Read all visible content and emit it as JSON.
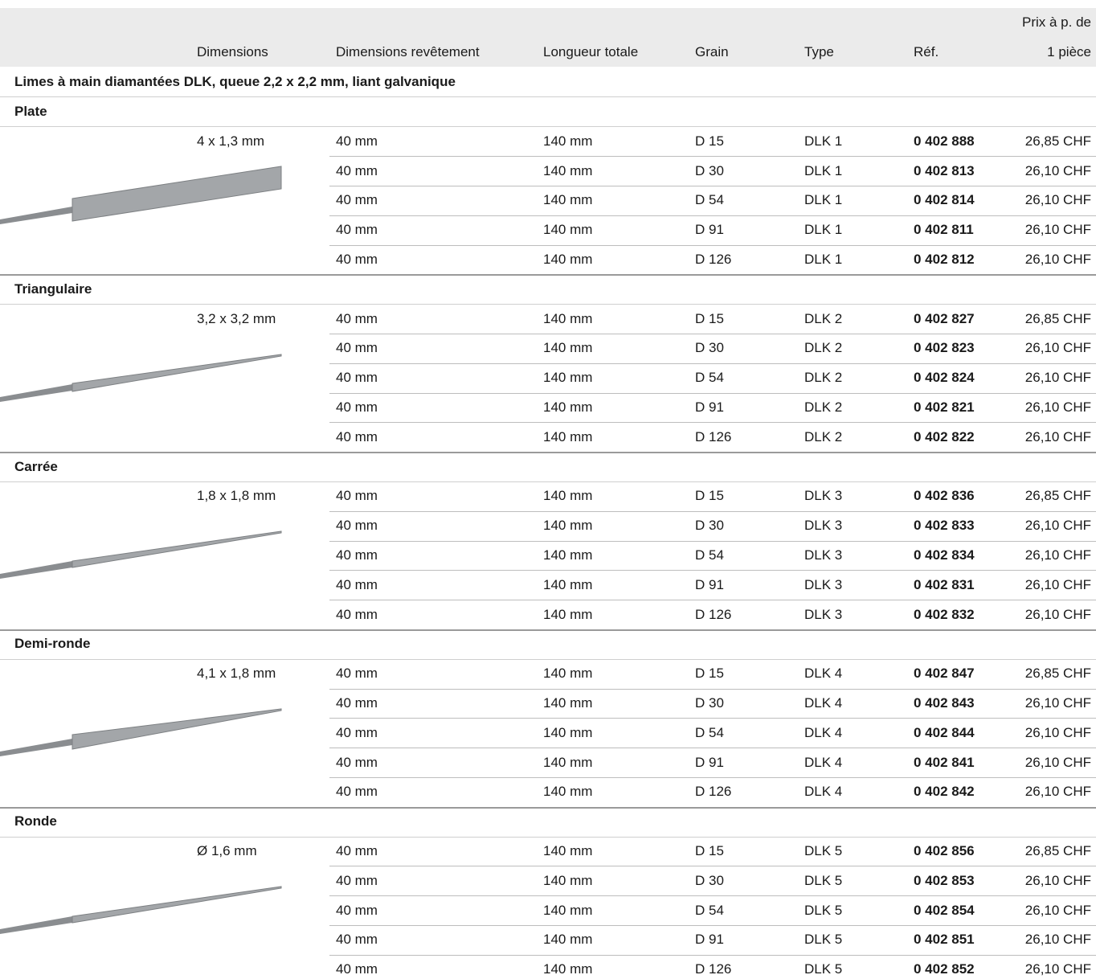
{
  "header": {
    "columns": [
      "Dimensions",
      "Dimensions revêtement",
      "Longueur totale",
      "Grain",
      "Type",
      "Réf."
    ],
    "price": [
      "Prix à p. de",
      "1 pièce"
    ]
  },
  "title": "Limes à main diamantées DLK, queue 2,2 x 2,2 mm, liant galvanique",
  "groups": [
    {
      "name": "Plate",
      "dimensions": "4 x 1,3 mm",
      "rows": [
        [
          "40 mm",
          "140 mm",
          "D 15",
          "DLK 1",
          "0 402 888",
          "26,85 CHF"
        ],
        [
          "40 mm",
          "140 mm",
          "D 30",
          "DLK 1",
          "0 402 813",
          "26,10 CHF"
        ],
        [
          "40 mm",
          "140 mm",
          "D 54",
          "DLK 1",
          "0 402 814",
          "26,10 CHF"
        ],
        [
          "40 mm",
          "140 mm",
          "D 91",
          "DLK 1",
          "0 402 811",
          "26,10 CHF"
        ],
        [
          "40 mm",
          "140 mm",
          "D 126",
          "DLK 1",
          "0 402 812",
          "26,10 CHF"
        ]
      ]
    },
    {
      "name": "Triangulaire",
      "dimensions": "3,2 x 3,2 mm",
      "rows": [
        [
          "40 mm",
          "140 mm",
          "D 15",
          "DLK 2",
          "0 402 827",
          "26,85 CHF"
        ],
        [
          "40 mm",
          "140 mm",
          "D 30",
          "DLK 2",
          "0 402 823",
          "26,10 CHF"
        ],
        [
          "40 mm",
          "140 mm",
          "D 54",
          "DLK 2",
          "0 402 824",
          "26,10 CHF"
        ],
        [
          "40 mm",
          "140 mm",
          "D 91",
          "DLK 2",
          "0 402 821",
          "26,10 CHF"
        ],
        [
          "40 mm",
          "140 mm",
          "D 126",
          "DLK 2",
          "0 402 822",
          "26,10 CHF"
        ]
      ]
    },
    {
      "name": "Carrée",
      "dimensions": "1,8 x 1,8 mm",
      "rows": [
        [
          "40 mm",
          "140 mm",
          "D 15",
          "DLK 3",
          "0 402 836",
          "26,85 CHF"
        ],
        [
          "40 mm",
          "140 mm",
          "D 30",
          "DLK 3",
          "0 402 833",
          "26,10 CHF"
        ],
        [
          "40 mm",
          "140 mm",
          "D 54",
          "DLK 3",
          "0 402 834",
          "26,10 CHF"
        ],
        [
          "40 mm",
          "140 mm",
          "D 91",
          "DLK 3",
          "0 402 831",
          "26,10 CHF"
        ],
        [
          "40 mm",
          "140 mm",
          "D 126",
          "DLK 3",
          "0 402 832",
          "26,10 CHF"
        ]
      ]
    },
    {
      "name": "Demi-ronde",
      "dimensions": "4,1 x 1,8 mm",
      "rows": [
        [
          "40 mm",
          "140 mm",
          "D 15",
          "DLK 4",
          "0 402 847",
          "26,85 CHF"
        ],
        [
          "40 mm",
          "140 mm",
          "D 30",
          "DLK 4",
          "0 402 843",
          "26,10 CHF"
        ],
        [
          "40 mm",
          "140 mm",
          "D 54",
          "DLK 4",
          "0 402 844",
          "26,10 CHF"
        ],
        [
          "40 mm",
          "140 mm",
          "D 91",
          "DLK 4",
          "0 402 841",
          "26,10 CHF"
        ],
        [
          "40 mm",
          "140 mm",
          "D 126",
          "DLK 4",
          "0 402 842",
          "26,10 CHF"
        ]
      ]
    },
    {
      "name": "Ronde",
      "dimensions": "Ø 1,6 mm",
      "rows": [
        [
          "40 mm",
          "140 mm",
          "D 15",
          "DLK 5",
          "0 402 856",
          "26,85 CHF"
        ],
        [
          "40 mm",
          "140 mm",
          "D 30",
          "DLK 5",
          "0 402 853",
          "26,10 CHF"
        ],
        [
          "40 mm",
          "140 mm",
          "D 54",
          "DLK 5",
          "0 402 854",
          "26,10 CHF"
        ],
        [
          "40 mm",
          "140 mm",
          "D 91",
          "DLK 5",
          "0 402 851",
          "26,10 CHF"
        ],
        [
          "40 mm",
          "140 mm",
          "D 126",
          "DLK 5",
          "0 402 852",
          "26,10 CHF"
        ]
      ]
    }
  ]
}
